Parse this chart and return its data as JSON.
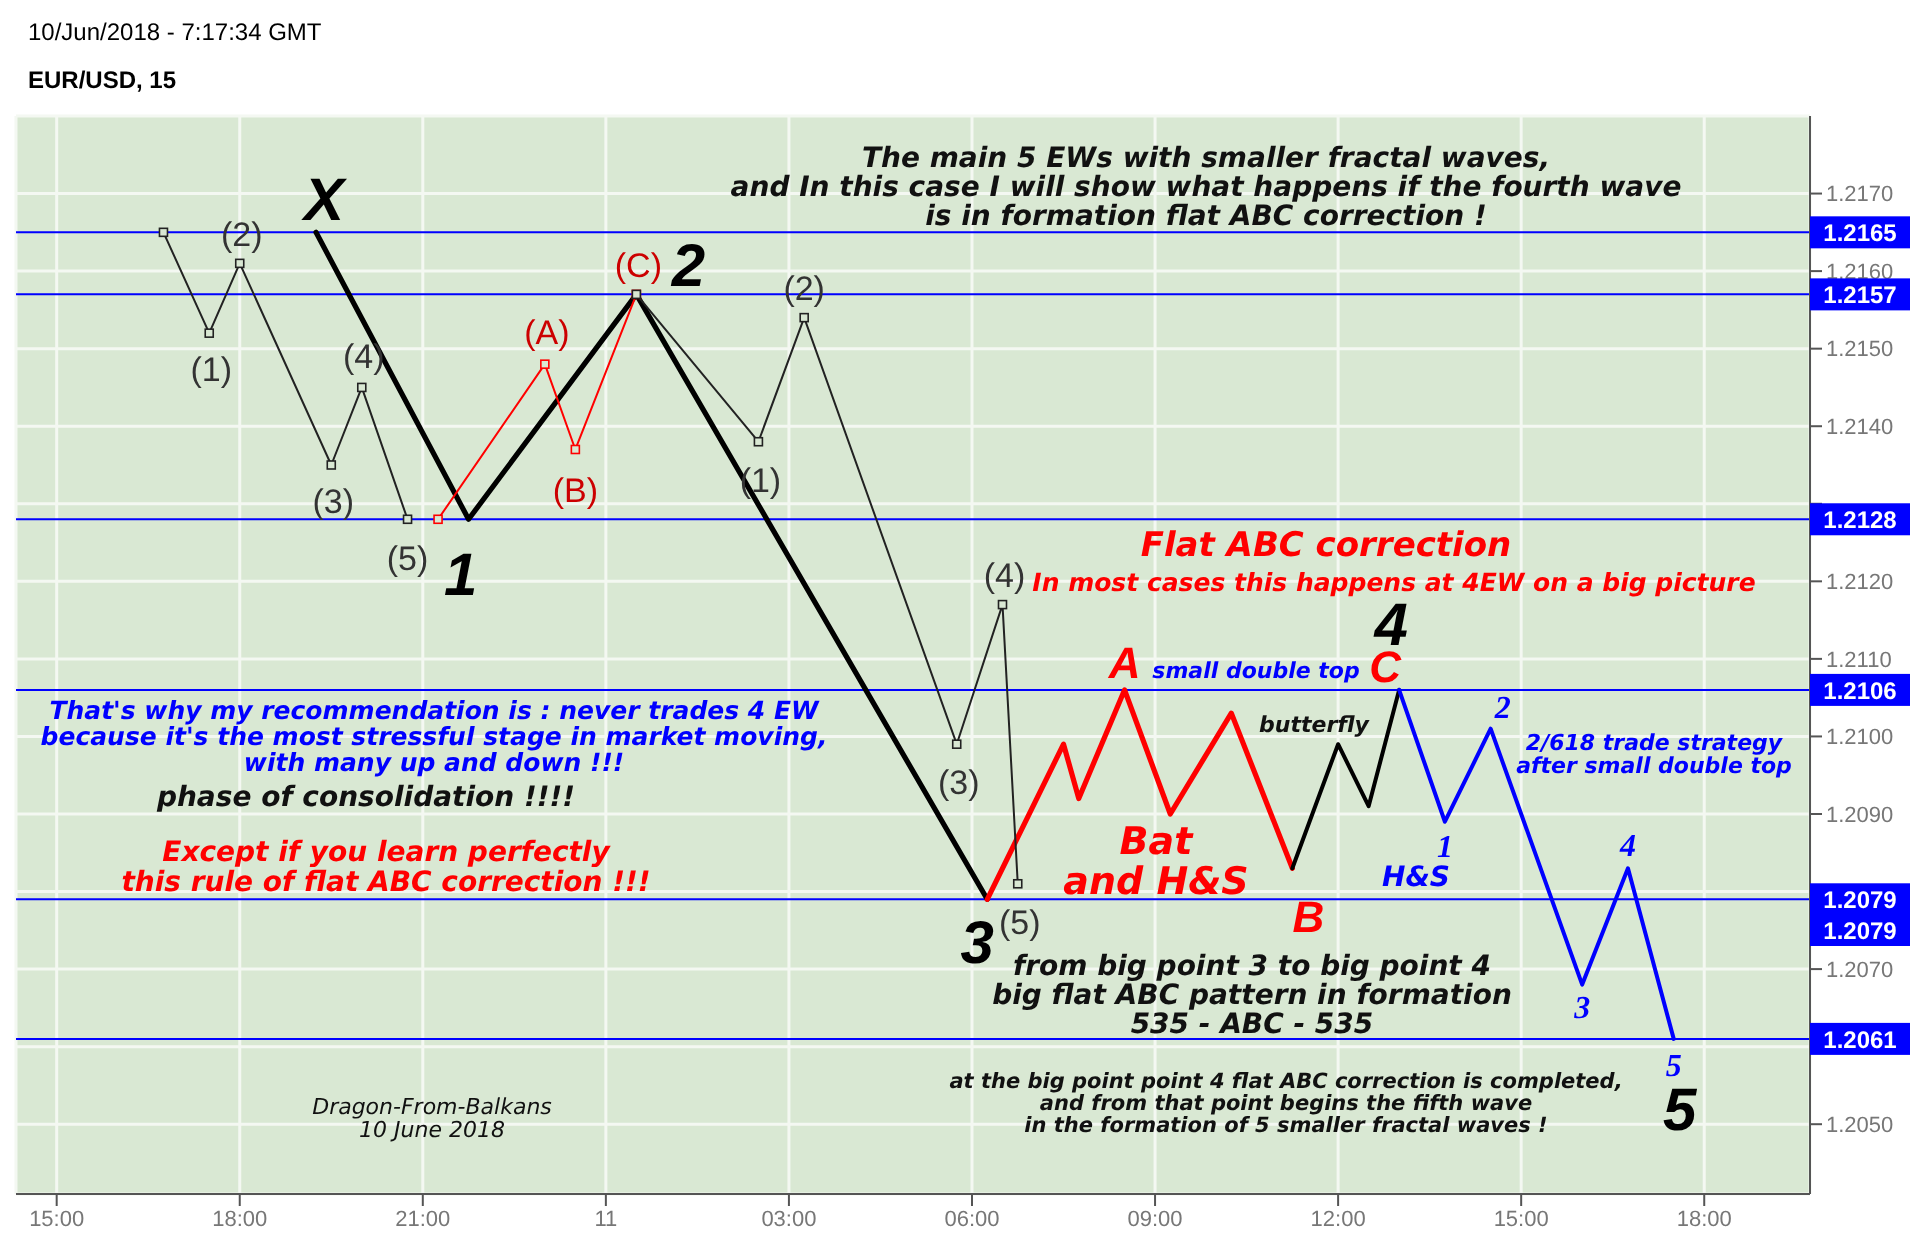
{
  "chart_data": {
    "type": "line",
    "title": "EUR/USD, 15",
    "subtitle": "10/Jun/2018 - 7:17:34 GMT",
    "xlim": [
      "2018-06-10T14:20",
      "2018-06-11T19:44"
    ],
    "ylim": [
      1.2041,
      1.218
    ],
    "xticks": [
      {
        "value": "2018-06-10T15:00",
        "label": "15:00"
      },
      {
        "value": "2018-06-10T18:00",
        "label": "18:00"
      },
      {
        "value": "2018-06-10T21:00",
        "label": "21:00"
      },
      {
        "value": "2018-06-11T00:00",
        "label": "11"
      },
      {
        "value": "2018-06-11T03:00",
        "label": "03:00"
      },
      {
        "value": "2018-06-11T06:00",
        "label": "06:00"
      },
      {
        "value": "2018-06-11T09:00",
        "label": "09:00"
      },
      {
        "value": "2018-06-11T12:00",
        "label": "12:00"
      },
      {
        "value": "2018-06-11T15:00",
        "label": "15:00"
      },
      {
        "value": "2018-06-11T18:00",
        "label": "18:00"
      }
    ],
    "yticks": [
      {
        "value": 1.205,
        "label": "1.2050"
      },
      {
        "value": 1.206,
        "label": null
      },
      {
        "value": 1.207,
        "label": "1.2070"
      },
      {
        "value": 1.208,
        "label": null
      },
      {
        "value": 1.209,
        "label": "1.2090"
      },
      {
        "value": 1.21,
        "label": "1.2100"
      },
      {
        "value": 1.211,
        "label": "1.2110"
      },
      {
        "value": 1.212,
        "label": "1.2120"
      },
      {
        "value": 1.213,
        "label": null
      },
      {
        "value": 1.214,
        "label": "1.2140"
      },
      {
        "value": 1.215,
        "label": "1.2150"
      },
      {
        "value": 1.216,
        "label": "1.2160"
      },
      {
        "value": 1.217,
        "label": "1.2170"
      }
    ],
    "grid": true,
    "series": [
      {
        "color": "#222222",
        "marker": "square",
        "x": [
          "2018-06-10T16:45",
          "2018-06-10T17:30",
          "2018-06-10T18:00",
          "2018-06-10T19:30",
          "2018-06-10T20:00",
          "2018-06-10T20:45"
        ],
        "values": [
          1.2165,
          1.2152,
          1.2161,
          1.2135,
          1.2145,
          1.2128
        ]
      },
      {
        "color": "#ff0000",
        "marker": "square",
        "x": [
          "2018-06-10T21:15",
          "2018-06-10T23:00",
          "2018-06-10T23:30",
          "2018-06-11T00:30"
        ],
        "values": [
          1.2128,
          1.2148,
          1.2137,
          1.2157
        ]
      },
      {
        "color": "#222222",
        "marker": "square",
        "x": [
          "2018-06-11T00:30",
          "2018-06-11T02:30",
          "2018-06-11T03:15",
          "2018-06-11T05:45",
          "2018-06-11T06:30",
          "2018-06-11T06:45"
        ],
        "values": [
          1.2157,
          1.2138,
          1.2154,
          1.2099,
          1.2117,
          1.2081
        ]
      },
      {
        "color": "#000000",
        "x": [
          "2018-06-10T19:15",
          "2018-06-10T21:45",
          "2018-06-11T00:30",
          "2018-06-11T06:15"
        ],
        "values": [
          1.2165,
          1.2128,
          1.2157,
          1.2079
        ]
      },
      {
        "color": "#ff0000",
        "x": [
          "2018-06-11T06:15",
          "2018-06-11T07:30",
          "2018-06-11T07:45",
          "2018-06-11T08:30",
          "2018-06-11T09:15",
          "2018-06-11T10:15",
          "2018-06-11T11:15"
        ],
        "values": [
          1.2079,
          1.2099,
          1.2092,
          1.2106,
          1.209,
          1.2103,
          1.2083
        ]
      },
      {
        "color": "#000000",
        "x": [
          "2018-06-11T11:15",
          "2018-06-11T12:00",
          "2018-06-11T12:30",
          "2018-06-11T13:00"
        ],
        "values": [
          1.2083,
          1.2099,
          1.2091,
          1.2106
        ]
      },
      {
        "color": "#0000ff",
        "x": [
          "2018-06-11T13:00",
          "2018-06-11T13:45",
          "2018-06-11T14:30",
          "2018-06-11T16:00",
          "2018-06-11T16:45",
          "2018-06-11T17:30"
        ],
        "values": [
          1.2106,
          1.2089,
          1.2101,
          1.2068,
          1.2083,
          1.2061
        ]
      }
    ],
    "ref_lines": [
      {
        "axis": "y",
        "value": 1.2165,
        "label": "1.2165",
        "color": "#0000ff"
      },
      {
        "axis": "y",
        "value": 1.2157,
        "label": "1.2157",
        "color": "#0000ff"
      },
      {
        "axis": "y",
        "value": 1.2128,
        "label": "1.2128",
        "color": "#0000ff"
      },
      {
        "axis": "y",
        "value": 1.2106,
        "label": "1.2106",
        "color": "#0000ff"
      },
      {
        "axis": "y",
        "value": 1.2079,
        "label": "1.2079",
        "color": "#0000ff"
      },
      {
        "axis": "y",
        "value": 1.2061,
        "label": "1.2061",
        "color": "#0000ff"
      }
    ],
    "annotations": [
      "The main 5 EWs with smaller fractal waves,\nand In this case I will show what happens if the fourth wave\nis in formation flat ABC correction !",
      "Flat ABC correction",
      "In most cases this happens at 4EW on a big picture",
      "small double top",
      "butterfly",
      "2/618 trade strategy\nafter small double top",
      "Bat\nand H&S",
      "H&S",
      "from big point 3 to big point 4\nbig flat ABC pattern in formation\n535 - ABC - 535",
      "at the big point point 4 flat ABC correction is completed,\nand from that point begins the fifth wave\nin the formation of 5 smaller fractal waves !",
      "That's why my recommendation is : never trades 4 EW\nbecause it's the most stressful stage in market moving,\nwith many up and down !!!",
      "phase of consolidation !!!!",
      "Except if you learn perfectly\nthis rule of flat ABC correction !!!",
      "Dragon-From-Balkans\n10 June 2018",
      "1.2079",
      {
        "text": "(1)",
        "x": "2018-06-10T17:30",
        "y": 1.2152
      },
      {
        "text": "(2)",
        "x": "2018-06-10T18:00",
        "y": 1.2161
      },
      {
        "text": "(3)",
        "x": "2018-06-10T19:30",
        "y": 1.2135
      },
      {
        "text": "(4)",
        "x": "2018-06-10T20:00",
        "y": 1.2145
      },
      {
        "text": "(5)",
        "x": "2018-06-10T20:45",
        "y": 1.2128
      },
      {
        "text": "(A)",
        "x": "2018-06-10T23:00",
        "y": 1.2148
      },
      {
        "text": "(B)",
        "x": "2018-06-10T23:30",
        "y": 1.2137
      },
      {
        "text": "(C)",
        "x": "2018-06-11T00:30",
        "y": 1.2157
      },
      {
        "text": "(1)",
        "x": "2018-06-11T02:30",
        "y": 1.2138
      },
      {
        "text": "(2)",
        "x": "2018-06-11T03:15",
        "y": 1.2154
      },
      {
        "text": "(3)",
        "x": "2018-06-11T05:45",
        "y": 1.2099
      },
      {
        "text": "(4)",
        "x": "2018-06-11T06:30",
        "y": 1.2117
      },
      {
        "text": "(5)",
        "x": "2018-06-11T06:45",
        "y": 1.2081
      },
      {
        "text": "X",
        "x": "2018-06-10T19:15",
        "y": 1.2165
      },
      {
        "text": "1",
        "x": "2018-06-10T21:45",
        "y": 1.2128
      },
      {
        "text": "2",
        "x": "2018-06-11T00:30",
        "y": 1.2157
      },
      {
        "text": "3",
        "x": "2018-06-11T06:15",
        "y": 1.2079
      },
      {
        "text": "4",
        "x": "2018-06-11T13:00",
        "y": 1.2106
      },
      {
        "text": "5",
        "x": "2018-06-11T17:30",
        "y": 1.2061
      },
      {
        "text": "A",
        "x": "2018-06-11T08:30",
        "y": 1.2106
      },
      {
        "text": "B",
        "x": "2018-06-11T11:15",
        "y": 1.2083
      },
      {
        "text": "C",
        "x": "2018-06-11T13:00",
        "y": 1.2106
      },
      {
        "text": "1",
        "x": "2018-06-11T13:45",
        "y": 1.2089
      },
      {
        "text": "2",
        "x": "2018-06-11T14:30",
        "y": 1.2101
      },
      {
        "text": "3",
        "x": "2018-06-11T16:00",
        "y": 1.2068
      },
      {
        "text": "4",
        "x": "2018-06-11T16:45",
        "y": 1.2083
      },
      {
        "text": "5",
        "x": "2018-06-11T17:30",
        "y": 1.2061
      }
    ]
  }
}
